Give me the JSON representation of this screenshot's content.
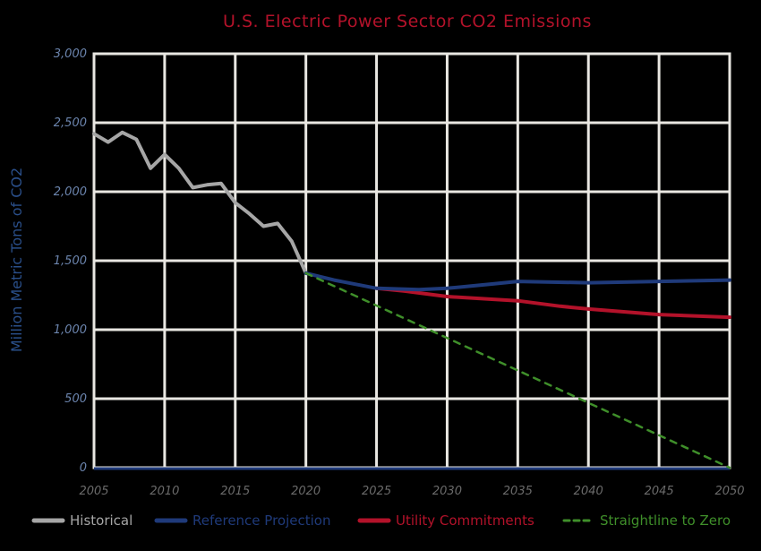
{
  "chart_data": {
    "type": "line",
    "title": "U.S. Electric Power Sector CO2 Emissions",
    "ylabel": "Million Metric Tons of CO2",
    "xlabel": "",
    "xlim": [
      2005,
      2050
    ],
    "ylim": [
      0,
      3000
    ],
    "x_ticks": [
      "2005",
      "2010",
      "2015",
      "2020",
      "2025",
      "2030",
      "2035",
      "2040",
      "2045",
      "2050"
    ],
    "y_ticks": [
      "0",
      "500",
      "1,000",
      "1,500",
      "2,000",
      "2,500",
      "3,000"
    ],
    "grid": true,
    "legend_position": "bottom",
    "series": [
      {
        "name": "Historical",
        "color": "#a6a6a6",
        "style": "solid",
        "x": [
          2005,
          2006,
          2007,
          2008,
          2009,
          2010,
          2011,
          2012,
          2013,
          2014,
          2015,
          2016,
          2017,
          2018,
          2019,
          2020
        ],
        "y": [
          2420,
          2360,
          2430,
          2380,
          2170,
          2270,
          2170,
          2030,
          2050,
          2060,
          1920,
          1840,
          1750,
          1770,
          1640,
          1410
        ]
      },
      {
        "name": "Reference Projection",
        "color": "#1f3a7a",
        "style": "solid",
        "x": [
          2020,
          2022,
          2025,
          2028,
          2030,
          2033,
          2035,
          2040,
          2045,
          2050
        ],
        "y": [
          1410,
          1360,
          1300,
          1290,
          1300,
          1330,
          1350,
          1340,
          1350,
          1360
        ]
      },
      {
        "name": "Utility Commitments",
        "color": "#b3122a",
        "style": "solid",
        "x": [
          2025,
          2027,
          2030,
          2035,
          2038,
          2040,
          2045,
          2050
        ],
        "y": [
          1300,
          1280,
          1240,
          1210,
          1170,
          1150,
          1110,
          1090
        ]
      },
      {
        "name": "Straightline to Zero",
        "color": "#3f8f2a",
        "style": "dashed",
        "x": [
          2020,
          2050
        ],
        "y": [
          1410,
          0
        ]
      }
    ]
  }
}
